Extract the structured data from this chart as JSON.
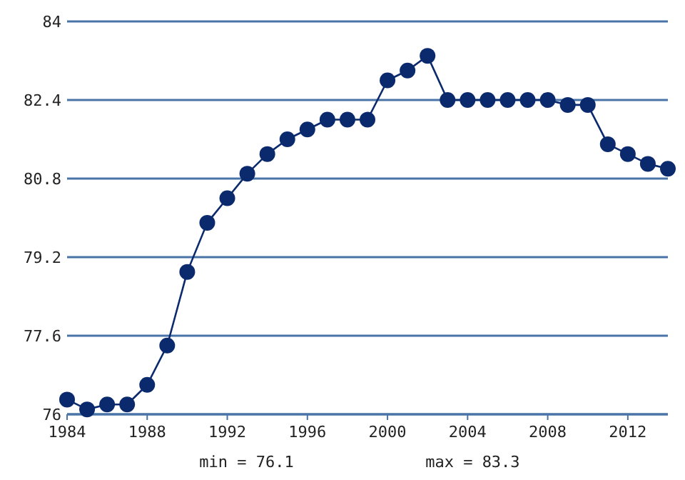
{
  "chart_data": {
    "type": "line",
    "x": [
      1984,
      1985,
      1986,
      1987,
      1988,
      1989,
      1990,
      1991,
      1992,
      1993,
      1994,
      1995,
      1996,
      1997,
      1998,
      1999,
      2000,
      2001,
      2002,
      2003,
      2004,
      2005,
      2006,
      2007,
      2008,
      2009,
      2010,
      2011,
      2012,
      2013,
      2014
    ],
    "series": [
      {
        "color": "#0b2a6e",
        "values": [
          76.3,
          76.1,
          76.2,
          76.2,
          76.6,
          77.4,
          78.9,
          79.9,
          80.4,
          80.9,
          81.3,
          81.6,
          81.8,
          82.0,
          82.0,
          82.0,
          82.8,
          83.0,
          83.3,
          82.4,
          82.4,
          82.4,
          82.4,
          82.4,
          82.4,
          82.3,
          82.3,
          81.5,
          81.3,
          81.1,
          81.0
        ]
      }
    ],
    "xlim": [
      1984,
      2014
    ],
    "xticks": [
      1984,
      1988,
      1992,
      1996,
      2000,
      2004,
      2008,
      2012
    ],
    "ylim": [
      76,
      84
    ],
    "yticks": [
      76,
      77.6,
      79.2,
      80.8,
      82.4,
      84
    ],
    "grid": "y",
    "marker": "circle",
    "line_style": "solid",
    "annotations": [
      "min = 76.1",
      "max = 83.3"
    ]
  }
}
